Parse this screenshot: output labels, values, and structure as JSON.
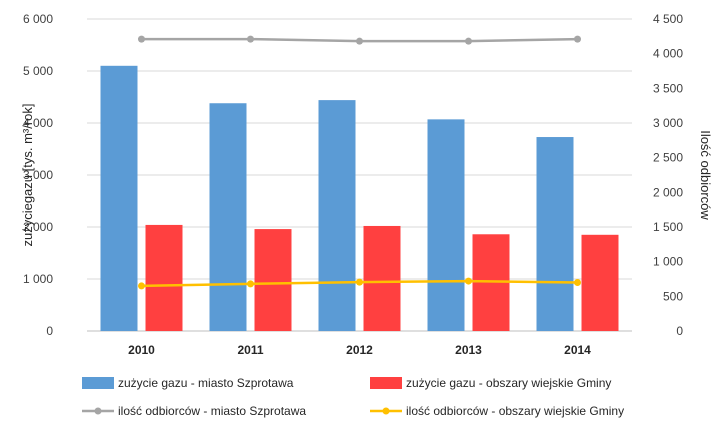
{
  "chart_data": {
    "type": "bar",
    "categories": [
      "2010",
      "2011",
      "2012",
      "2013",
      "2014"
    ],
    "y_left": {
      "label": "zużyciegazu [tys. m³/rok]",
      "ylim": [
        0,
        6000
      ],
      "ticks": [
        0,
        1000,
        2000,
        3000,
        4000,
        5000,
        6000
      ],
      "tick_labels": [
        "0",
        "1 000",
        "2 000",
        "3 000",
        "4 000",
        "5 000",
        "6 000"
      ]
    },
    "y_right": {
      "label": "Ilość odbiorców",
      "ylim": [
        0,
        4500
      ],
      "ticks": [
        0,
        500,
        1000,
        1500,
        2000,
        2500,
        3000,
        3500,
        4000,
        4500
      ],
      "tick_labels": [
        "0",
        "500",
        "1 000",
        "1 500",
        "2 000",
        "2 500",
        "3 000",
        "3 500",
        "4 000",
        "4 500"
      ]
    },
    "series": [
      {
        "name": "zużycie gazu - miasto Szprotawa",
        "kind": "bar",
        "axis": "left",
        "color": "#5b9bd5",
        "values": [
          5100,
          4380,
          4440,
          4070,
          3730
        ]
      },
      {
        "name": "zużycie gazu - obszary wiejskie Gminy",
        "kind": "bar",
        "axis": "left",
        "color": "#ff4040",
        "values": [
          2040,
          1960,
          2020,
          1860,
          1850
        ]
      },
      {
        "name": "ilość odbiorców - miasto Szprotawa",
        "kind": "line",
        "axis": "right",
        "color": "#a5a5a5",
        "values": [
          4210,
          4210,
          4180,
          4180,
          4210
        ]
      },
      {
        "name": "ilość odbiorców - obszary wiejskie Gminy",
        "kind": "line",
        "axis": "right",
        "color": "#ffc000",
        "values": [
          650,
          680,
          705,
          720,
          700
        ]
      }
    ],
    "grid": true,
    "legend_position": "bottom"
  }
}
